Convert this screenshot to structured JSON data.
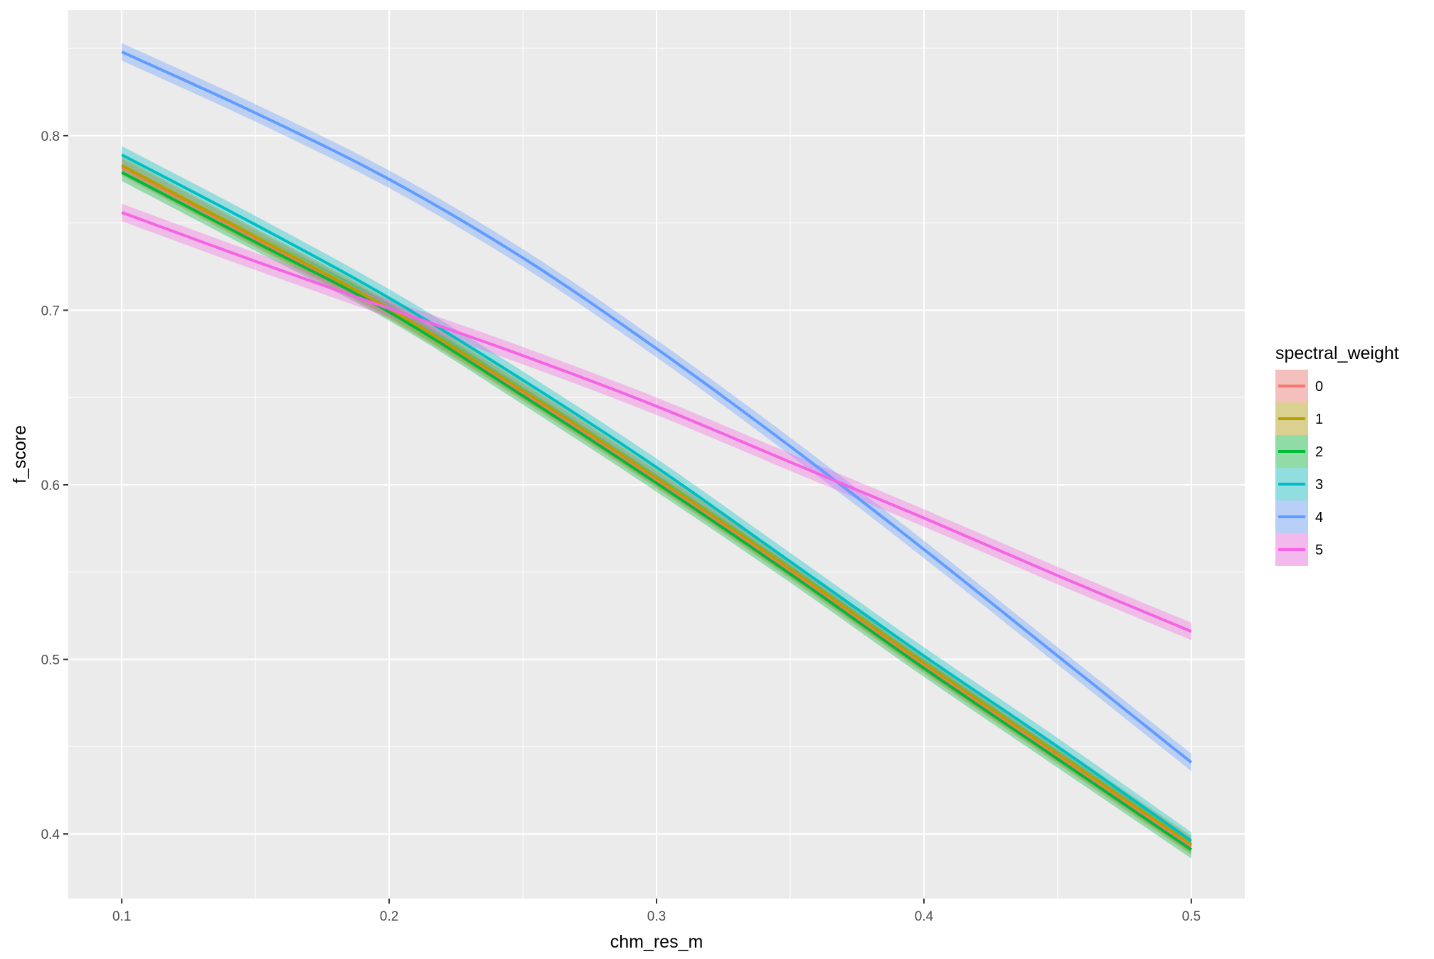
{
  "chart_data": {
    "type": "line",
    "xlabel": "chm_res_m",
    "ylabel": "f_score",
    "xlim": [
      0.08,
      0.52
    ],
    "ylim": [
      0.363,
      0.872
    ],
    "x_ticks": [
      0.1,
      0.2,
      0.3,
      0.4,
      0.5
    ],
    "x_tick_labels": [
      "0.1",
      "0.2",
      "0.3",
      "0.4",
      "0.5"
    ],
    "y_ticks": [
      0.4,
      0.5,
      0.6,
      0.7,
      0.8
    ],
    "y_tick_labels": [
      "0.4",
      "0.5",
      "0.6",
      "0.7",
      "0.8"
    ],
    "grid": true,
    "background": "#ebebeb",
    "legend": {
      "title": "spectral_weight",
      "position": "right"
    },
    "x": [
      0.1,
      0.15,
      0.2,
      0.25,
      0.3,
      0.35,
      0.4,
      0.45,
      0.5
    ],
    "series": [
      {
        "name": "0",
        "color": "#F8766D",
        "band": 0.005,
        "values": [
          0.782,
          0.741,
          0.7,
          0.653,
          0.603,
          0.551,
          0.497,
          0.445,
          0.393
        ]
      },
      {
        "name": "1",
        "color": "#B79F00",
        "band": 0.005,
        "values": [
          0.783,
          0.742,
          0.701,
          0.654,
          0.604,
          0.552,
          0.498,
          0.446,
          0.394
        ]
      },
      {
        "name": "2",
        "color": "#00BA38",
        "band": 0.005,
        "values": [
          0.779,
          0.739,
          0.699,
          0.651,
          0.601,
          0.549,
          0.495,
          0.443,
          0.391
        ]
      },
      {
        "name": "3",
        "color": "#00BFC4",
        "band": 0.005,
        "values": [
          0.789,
          0.749,
          0.707,
          0.66,
          0.61,
          0.556,
          0.502,
          0.45,
          0.396
        ]
      },
      {
        "name": "4",
        "color": "#619CFF",
        "band": 0.005,
        "values": [
          0.848,
          0.813,
          0.775,
          0.73,
          0.678,
          0.622,
          0.563,
          0.502,
          0.441
        ]
      },
      {
        "name": "5",
        "color": "#F564E3",
        "band": 0.005,
        "values": [
          0.756,
          0.728,
          0.701,
          0.674,
          0.645,
          0.613,
          0.581,
          0.548,
          0.516
        ]
      }
    ]
  }
}
